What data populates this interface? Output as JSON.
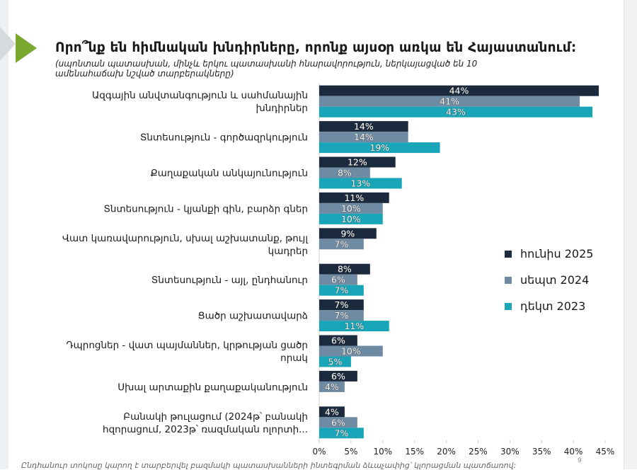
{
  "title": "Որո՞նք են հիմնական խնդիրները, որոնք այսօր առկա են Հայաստանում:",
  "subtitle": "(սպոնտան պատասխան, մինչև երկու պատասխանի հնարավորություն, ներկայացված են 10 ամենահաճախ նշված տարբերակները)",
  "footer": "Ընդհանուր տոկոսը կարող է տարբերվել բազմակի պատասխանների ինտեգրման ձևաչափից՝ կլորացման պատճառով:",
  "page_number": "9",
  "colors": {
    "hulis_2025": "#1b2a3d",
    "sept_2024": "#6f8aa3",
    "dec_2023": "#17a5b7",
    "triangle": "#7aa82e"
  },
  "chart_data": {
    "type": "bar",
    "orientation": "horizontal",
    "categories": [
      "Ազգային անվտանգություն և սահմանային խնդիրներ",
      "Տնտեսություն - գործազրկություն",
      "Քաղաքական անկայունություն",
      "Տնտեսություն - կյանքի գին, բարձր գներ",
      "Վատ կառավարություն, սխալ աշխատանք, թույլ կադրեր",
      "Տնտեսություն - այլ, ընդհանուր",
      "Ցածր աշխատավարձ",
      "Դպրոցներ - վատ պայմաններ, կրթության ցածր որակ",
      "Սխալ արտաքին քաղաքականություն",
      "Բանակի թուլացում (2024թ՝ բանակի հզորացում, 2023թ՝ ռազմական ոլորտի..."
    ],
    "category_lines": [
      [
        "Ազգային անվտանգություն և սահմանային",
        "խնդիրներ"
      ],
      [
        "Տնտեսություն - գործազրկություն"
      ],
      [
        "Քաղաքական անկայունություն"
      ],
      [
        "Տնտեսություն - կյանքի գին, բարձր գներ"
      ],
      [
        "Վատ կառավարություն, սխալ աշխատանք, թույլ",
        "կադրեր"
      ],
      [
        "Տնտեսություն - այլ, ընդհանուր"
      ],
      [
        "Ցածր աշխատավարձ"
      ],
      [
        "Դպրոցներ - վատ պայմաններ, կրթության ցածր",
        "որակ"
      ],
      [
        "Սխալ արտաքին քաղաքականություն"
      ],
      [
        "Բանակի թուլացում (2024թ՝ բանակի",
        "հզորացում, 2023թ՝ ռազմական ոլորտի..."
      ]
    ],
    "series": [
      {
        "name": "հունիս 2025",
        "color": "#1b2a3d",
        "values": [
          44,
          14,
          12,
          11,
          9,
          8,
          7,
          6,
          6,
          4
        ]
      },
      {
        "name": "սեպտ 2024",
        "color": "#6f8aa3",
        "values": [
          41,
          14,
          8,
          10,
          7,
          6,
          7,
          10,
          4,
          6
        ]
      },
      {
        "name": "դեկտ 2023",
        "color": "#17a5b7",
        "values": [
          43,
          19,
          13,
          10,
          null,
          7,
          11,
          5,
          null,
          7
        ]
      }
    ],
    "xlim": [
      0,
      45
    ],
    "xticks": [
      "0%",
      "5%",
      "10%",
      "15%",
      "20%",
      "25%",
      "30%",
      "35%",
      "40%",
      "45%"
    ],
    "value_suffix": "%",
    "legend_position": "right"
  }
}
